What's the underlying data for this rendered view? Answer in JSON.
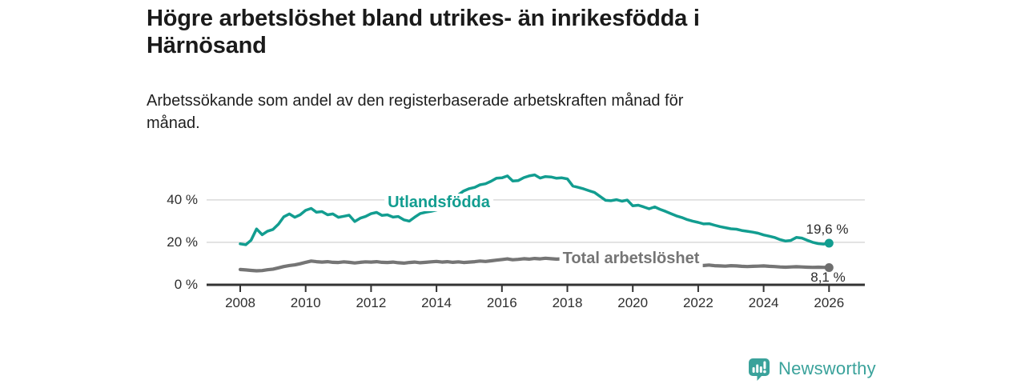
{
  "header": {
    "title_line1": "Högre arbetslöshet bland utrikes- än inrikesfödda i",
    "title_line2": "Härnösand",
    "subtitle_line1": "Arbetssökande som andel av den registerbaserade arbetskraften månad för",
    "subtitle_line2": "månad."
  },
  "footer": {
    "brand": "Newsworthy",
    "brand_color": "#3aa29b"
  },
  "colors": {
    "axis": "#333333",
    "grid": "#d9d9d9",
    "tick_text": "#2e2e2e",
    "value_text": "#2b2b2b"
  },
  "chart_data": {
    "type": "line",
    "title": "Högre arbetslöshet bland utrikes- än inrikesfödda i Härnösand",
    "subtitle": "Arbetssökande som andel av den registerbaserade arbetskraften månad för månad.",
    "unit": "%",
    "x_base_year": 2008,
    "x_ticks": [
      2008,
      2010,
      2012,
      2014,
      2016,
      2018,
      2020,
      2022,
      2024,
      2026
    ],
    "y_ticks": [
      0,
      20,
      40
    ],
    "y_tick_suffix": " %",
    "ylim": [
      0,
      55
    ],
    "grid": true,
    "legend_position": "inline-labels",
    "series": [
      {
        "name": "Utlandsfödda",
        "color": "#129d90",
        "end_label": "19,6 %",
        "end_value": 19.6,
        "points": [
          [
            2008.0,
            19.3
          ],
          [
            2008.17,
            18.9
          ],
          [
            2008.33,
            21.0
          ],
          [
            2008.5,
            26.3
          ],
          [
            2008.67,
            23.6
          ],
          [
            2008.83,
            25.2
          ],
          [
            2009.0,
            26.1
          ],
          [
            2009.17,
            28.6
          ],
          [
            2009.33,
            32.0
          ],
          [
            2009.5,
            33.4
          ],
          [
            2009.67,
            31.8
          ],
          [
            2009.83,
            33.0
          ],
          [
            2010.0,
            35.1
          ],
          [
            2010.17,
            36.0
          ],
          [
            2010.33,
            34.2
          ],
          [
            2010.5,
            34.5
          ],
          [
            2010.67,
            33.0
          ],
          [
            2010.83,
            33.4
          ],
          [
            2011.0,
            31.8
          ],
          [
            2011.17,
            32.3
          ],
          [
            2011.33,
            32.8
          ],
          [
            2011.5,
            29.8
          ],
          [
            2011.67,
            31.4
          ],
          [
            2011.83,
            32.2
          ],
          [
            2012.0,
            33.5
          ],
          [
            2012.17,
            34.1
          ],
          [
            2012.33,
            32.7
          ],
          [
            2012.5,
            33.0
          ],
          [
            2012.67,
            31.9
          ],
          [
            2012.83,
            32.2
          ],
          [
            2013.0,
            30.6
          ],
          [
            2013.17,
            30.0
          ],
          [
            2013.33,
            31.8
          ],
          [
            2013.5,
            33.6
          ],
          [
            2013.67,
            34.2
          ],
          [
            2013.83,
            34.6
          ],
          [
            2014.0,
            35.2
          ],
          [
            2014.17,
            36.2
          ],
          [
            2014.33,
            38.4
          ],
          [
            2014.5,
            40.3
          ],
          [
            2014.67,
            42.4
          ],
          [
            2014.83,
            44.2
          ],
          [
            2015.0,
            45.3
          ],
          [
            2015.17,
            45.9
          ],
          [
            2015.33,
            47.1
          ],
          [
            2015.5,
            47.6
          ],
          [
            2015.67,
            48.8
          ],
          [
            2015.83,
            50.2
          ],
          [
            2016.0,
            50.4
          ],
          [
            2016.17,
            51.3
          ],
          [
            2016.33,
            48.9
          ],
          [
            2016.5,
            49.1
          ],
          [
            2016.67,
            50.5
          ],
          [
            2016.83,
            51.3
          ],
          [
            2017.0,
            51.8
          ],
          [
            2017.17,
            50.3
          ],
          [
            2017.33,
            51.0
          ],
          [
            2017.5,
            50.8
          ],
          [
            2017.67,
            50.2
          ],
          [
            2017.83,
            50.4
          ],
          [
            2018.0,
            49.9
          ],
          [
            2018.17,
            46.5
          ],
          [
            2018.33,
            45.9
          ],
          [
            2018.5,
            45.2
          ],
          [
            2018.67,
            44.3
          ],
          [
            2018.83,
            43.5
          ],
          [
            2019.0,
            41.6
          ],
          [
            2019.17,
            39.8
          ],
          [
            2019.33,
            39.6
          ],
          [
            2019.5,
            40.1
          ],
          [
            2019.67,
            39.4
          ],
          [
            2019.83,
            39.9
          ],
          [
            2020.0,
            37.2
          ],
          [
            2020.17,
            37.5
          ],
          [
            2020.33,
            36.7
          ],
          [
            2020.5,
            35.8
          ],
          [
            2020.67,
            36.7
          ],
          [
            2020.83,
            35.6
          ],
          [
            2021.0,
            34.6
          ],
          [
            2021.17,
            33.5
          ],
          [
            2021.33,
            32.5
          ],
          [
            2021.5,
            31.7
          ],
          [
            2021.67,
            30.7
          ],
          [
            2021.83,
            30.0
          ],
          [
            2022.0,
            29.4
          ],
          [
            2022.17,
            28.7
          ],
          [
            2022.33,
            28.8
          ],
          [
            2022.5,
            28.1
          ],
          [
            2022.67,
            27.4
          ],
          [
            2022.83,
            26.9
          ],
          [
            2023.0,
            26.4
          ],
          [
            2023.17,
            26.2
          ],
          [
            2023.33,
            25.6
          ],
          [
            2023.5,
            25.2
          ],
          [
            2023.67,
            24.8
          ],
          [
            2023.83,
            24.3
          ],
          [
            2024.0,
            23.5
          ],
          [
            2024.17,
            22.9
          ],
          [
            2024.33,
            22.3
          ],
          [
            2024.5,
            21.3
          ],
          [
            2024.67,
            20.6
          ],
          [
            2024.83,
            20.9
          ],
          [
            2025.0,
            22.3
          ],
          [
            2025.17,
            22.0
          ],
          [
            2025.33,
            21.0
          ],
          [
            2025.5,
            20.0
          ],
          [
            2025.67,
            19.4
          ],
          [
            2025.83,
            19.2
          ],
          [
            2026.0,
            19.6
          ]
        ]
      },
      {
        "name": "Total arbetslöshet",
        "color": "#757575",
        "dot_color": "#6e6e6e",
        "end_label": "8,1 %",
        "end_value": 8.1,
        "points": [
          [
            2008.0,
            7.2
          ],
          [
            2008.17,
            7.0
          ],
          [
            2008.33,
            6.8
          ],
          [
            2008.5,
            6.6
          ],
          [
            2008.67,
            6.7
          ],
          [
            2008.83,
            7.1
          ],
          [
            2009.0,
            7.4
          ],
          [
            2009.17,
            8.0
          ],
          [
            2009.33,
            8.6
          ],
          [
            2009.5,
            9.1
          ],
          [
            2009.67,
            9.4
          ],
          [
            2009.83,
            9.9
          ],
          [
            2010.0,
            10.6
          ],
          [
            2010.17,
            11.2
          ],
          [
            2010.33,
            10.9
          ],
          [
            2010.5,
            10.7
          ],
          [
            2010.67,
            10.9
          ],
          [
            2010.83,
            10.6
          ],
          [
            2011.0,
            10.5
          ],
          [
            2011.17,
            10.8
          ],
          [
            2011.33,
            10.6
          ],
          [
            2011.5,
            10.3
          ],
          [
            2011.67,
            10.6
          ],
          [
            2011.83,
            10.8
          ],
          [
            2012.0,
            10.7
          ],
          [
            2012.17,
            10.9
          ],
          [
            2012.33,
            10.6
          ],
          [
            2012.5,
            10.5
          ],
          [
            2012.67,
            10.7
          ],
          [
            2012.83,
            10.4
          ],
          [
            2013.0,
            10.2
          ],
          [
            2013.17,
            10.5
          ],
          [
            2013.33,
            10.7
          ],
          [
            2013.5,
            10.4
          ],
          [
            2013.67,
            10.6
          ],
          [
            2013.83,
            10.8
          ],
          [
            2014.0,
            11.0
          ],
          [
            2014.17,
            10.7
          ],
          [
            2014.33,
            10.9
          ],
          [
            2014.5,
            10.6
          ],
          [
            2014.67,
            10.8
          ],
          [
            2014.83,
            10.5
          ],
          [
            2015.0,
            10.7
          ],
          [
            2015.17,
            10.9
          ],
          [
            2015.33,
            11.2
          ],
          [
            2015.5,
            11.0
          ],
          [
            2015.67,
            11.3
          ],
          [
            2015.83,
            11.6
          ],
          [
            2016.0,
            11.9
          ],
          [
            2016.17,
            12.2
          ],
          [
            2016.33,
            11.8
          ],
          [
            2016.5,
            12.0
          ],
          [
            2016.67,
            12.3
          ],
          [
            2016.83,
            12.1
          ],
          [
            2017.0,
            12.4
          ],
          [
            2017.17,
            12.2
          ],
          [
            2017.33,
            12.5
          ],
          [
            2017.5,
            12.3
          ],
          [
            2017.67,
            12.1
          ],
          [
            2017.83,
            12.2
          ],
          [
            2018.0,
            12.0
          ],
          [
            2018.17,
            11.8
          ],
          [
            2018.33,
            11.9
          ],
          [
            2018.5,
            11.6
          ],
          [
            2018.67,
            11.7
          ],
          [
            2018.83,
            11.5
          ],
          [
            2019.0,
            11.3
          ],
          [
            2019.17,
            11.1
          ],
          [
            2019.33,
            11.2
          ],
          [
            2019.5,
            11.0
          ],
          [
            2019.67,
            10.9
          ],
          [
            2019.83,
            11.0
          ],
          [
            2020.0,
            10.8
          ],
          [
            2020.17,
            11.2
          ],
          [
            2020.33,
            11.0
          ],
          [
            2020.5,
            10.7
          ],
          [
            2020.67,
            10.5
          ],
          [
            2020.83,
            10.3
          ],
          [
            2021.0,
            10.1
          ],
          [
            2021.17,
            9.9
          ],
          [
            2021.33,
            9.7
          ],
          [
            2021.5,
            9.5
          ],
          [
            2021.67,
            9.4
          ],
          [
            2021.83,
            9.3
          ],
          [
            2022.0,
            9.2
          ],
          [
            2022.17,
            9.1
          ],
          [
            2022.33,
            9.3
          ],
          [
            2022.5,
            9.0
          ],
          [
            2022.67,
            8.9
          ],
          [
            2022.83,
            8.8
          ],
          [
            2023.0,
            9.0
          ],
          [
            2023.17,
            8.9
          ],
          [
            2023.33,
            8.7
          ],
          [
            2023.5,
            8.6
          ],
          [
            2023.67,
            8.7
          ],
          [
            2023.83,
            8.8
          ],
          [
            2024.0,
            8.9
          ],
          [
            2024.17,
            8.7
          ],
          [
            2024.33,
            8.6
          ],
          [
            2024.5,
            8.4
          ],
          [
            2024.67,
            8.3
          ],
          [
            2024.83,
            8.4
          ],
          [
            2025.0,
            8.5
          ],
          [
            2025.17,
            8.4
          ],
          [
            2025.33,
            8.3
          ],
          [
            2025.5,
            8.2
          ],
          [
            2025.67,
            8.3
          ],
          [
            2025.83,
            8.2
          ],
          [
            2026.0,
            8.1
          ]
        ]
      }
    ]
  }
}
